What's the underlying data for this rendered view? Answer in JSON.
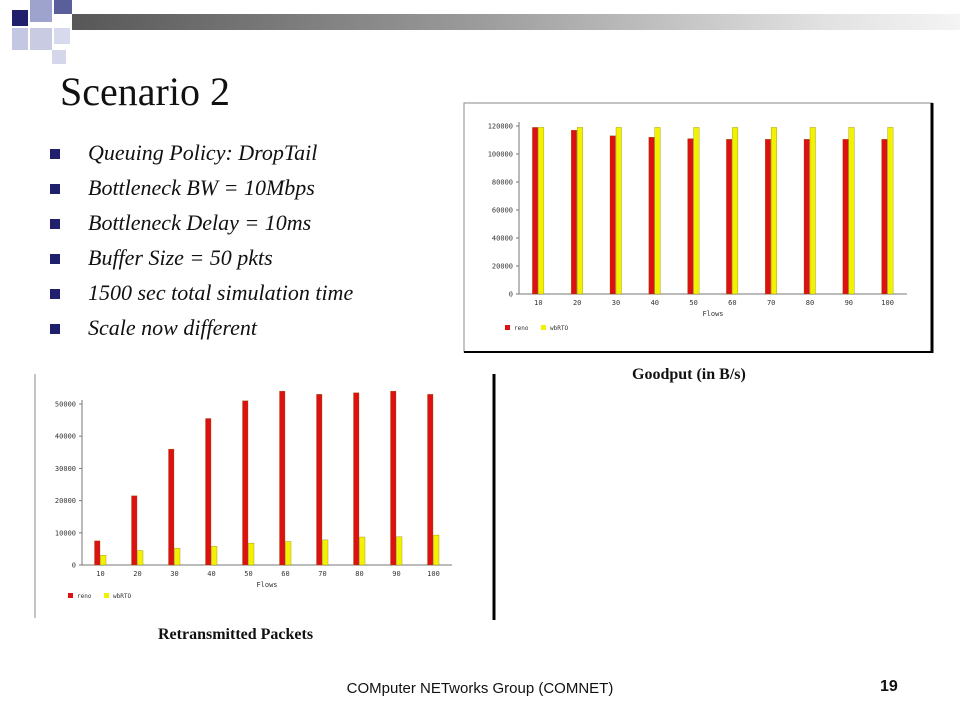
{
  "slide": {
    "title": "Scenario 2",
    "bullets": [
      "Queuing Policy: DropTail",
      "Bottleneck BW = 10Mbps",
      "Bottleneck Delay = 10ms",
      "Buffer Size = 50 pkts",
      "1500 sec total simulation time",
      "Scale now different"
    ],
    "footer": "COMputer NETworks Group (COMNET)",
    "page_number": "19",
    "colors": {
      "accent": "#1f1f6b",
      "reno": "#dd1111",
      "wbRTO": "#f2f200"
    }
  },
  "chart_data": [
    {
      "type": "bar",
      "title": "Goodput (in B/s)",
      "xlabel": "Flows",
      "ylabel": "",
      "categories": [
        "10",
        "20",
        "30",
        "40",
        "50",
        "60",
        "70",
        "80",
        "90",
        "100"
      ],
      "yticks": [
        "0",
        "20000",
        "40000",
        "60000",
        "80000",
        "100000",
        "120000"
      ],
      "ylim": [
        0,
        120000
      ],
      "grid": false,
      "legend": "bottom-left",
      "series": [
        {
          "name": "reno",
          "color": "#dd1111",
          "values": [
            119000,
            117000,
            113000,
            112000,
            111000,
            110500,
            110500,
            110500,
            110500,
            110500
          ]
        },
        {
          "name": "wbRTO",
          "color": "#f2f200",
          "values": [
            119000,
            119000,
            119000,
            119000,
            119000,
            119000,
            119000,
            119000,
            119000,
            119000
          ]
        }
      ]
    },
    {
      "type": "bar",
      "title": "Retransmitted Packets",
      "xlabel": "Flows",
      "ylabel": "",
      "categories": [
        "10",
        "20",
        "30",
        "40",
        "50",
        "60",
        "70",
        "80",
        "90",
        "100"
      ],
      "yticks": [
        "0",
        "10000",
        "20000",
        "30000",
        "40000",
        "50000"
      ],
      "ylim": [
        0,
        50000
      ],
      "grid": false,
      "legend": "bottom-left",
      "series": [
        {
          "name": "reno",
          "color": "#dd1111",
          "values": [
            7500,
            21500,
            36000,
            45500,
            51000,
            54000,
            53000,
            53500,
            54000,
            53000
          ]
        },
        {
          "name": "wbRTO",
          "color": "#f2f200",
          "values": [
            3000,
            4500,
            5200,
            5800,
            6800,
            7300,
            7800,
            8700,
            8800,
            9300
          ]
        }
      ]
    }
  ]
}
